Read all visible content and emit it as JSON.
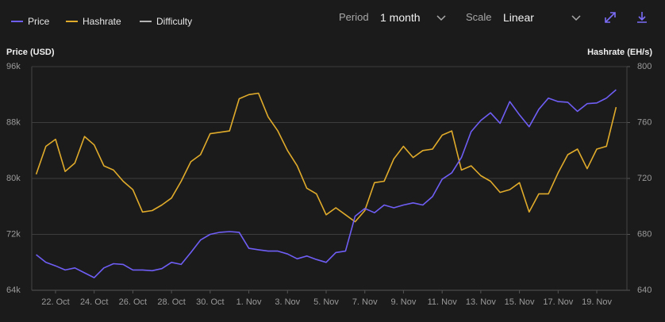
{
  "controls": {
    "period_label": "Period",
    "period_value": "1 month",
    "scale_label": "Scale",
    "scale_value": "Linear"
  },
  "chart_data": {
    "type": "line",
    "y_label": "Price (USD)",
    "y2_label": "Hashrate (EH/s)",
    "categories": [
      null,
      null,
      "22. Oct",
      null,
      null,
      null,
      "24. Oct",
      null,
      null,
      null,
      "26. Oct",
      null,
      null,
      null,
      "28. Oct",
      null,
      null,
      null,
      "30. Oct",
      null,
      null,
      null,
      "1. Nov",
      null,
      null,
      null,
      "3. Nov",
      null,
      null,
      null,
      "5. Nov",
      null,
      null,
      null,
      "7. Nov",
      null,
      null,
      null,
      "9. Nov",
      null,
      null,
      null,
      "11. Nov",
      null,
      null,
      null,
      "13. Nov",
      null,
      null,
      null,
      "15. Nov",
      null,
      null,
      null,
      "17. Nov",
      null,
      null,
      null,
      "19. Nov",
      null,
      null
    ],
    "ylim": [
      64000,
      96000
    ],
    "yticks": [
      {
        "value": 64000,
        "label": "64k"
      },
      {
        "value": 72000,
        "label": "72k"
      },
      {
        "value": 80000,
        "label": "80k"
      },
      {
        "value": 88000,
        "label": "88k"
      },
      {
        "value": 96000,
        "label": "96k"
      }
    ],
    "y2lim": [
      640,
      800
    ],
    "y2ticks": [
      640,
      680,
      720,
      760,
      800
    ],
    "grid": true,
    "legend": "top-left",
    "series": [
      {
        "name": "Price",
        "color": "#6f5ef5",
        "axis": "y",
        "values": [
          69100,
          68000,
          67500,
          66900,
          67200,
          66500,
          65800,
          67200,
          67800,
          67700,
          66900,
          66900,
          66800,
          67100,
          68000,
          67700,
          69400,
          71200,
          72000,
          72300,
          72400,
          72300,
          70000,
          69800,
          69600,
          69600,
          69200,
          68500,
          68900,
          68400,
          68000,
          69400,
          69600,
          74600,
          75700,
          75100,
          76200,
          75800,
          76200,
          76500,
          76200,
          77400,
          79900,
          80800,
          83000,
          86700,
          88300,
          89400,
          87900,
          91000,
          89100,
          87400,
          89900,
          91500,
          91000,
          90900,
          89600,
          90700,
          90800,
          91500,
          92700
        ]
      },
      {
        "name": "Hashrate",
        "color": "#e0ab2b",
        "axis": "y2",
        "values": [
          723,
          743,
          748,
          725,
          731,
          750,
          744,
          729,
          726,
          718,
          712,
          696,
          697,
          701,
          706,
          718,
          732,
          737,
          752,
          753,
          754,
          777,
          780,
          781,
          764,
          754,
          740,
          729,
          713,
          709,
          694,
          699,
          694,
          689,
          697,
          717,
          718,
          734,
          743,
          735,
          740,
          741,
          751,
          754,
          726,
          729,
          722,
          718,
          710,
          712,
          717,
          696,
          709,
          709,
          724,
          737,
          741,
          727,
          741,
          743,
          771
        ]
      },
      {
        "name": "Difficulty",
        "color": "#b4b4b4",
        "axis": "y2",
        "hidden": true
      }
    ]
  }
}
